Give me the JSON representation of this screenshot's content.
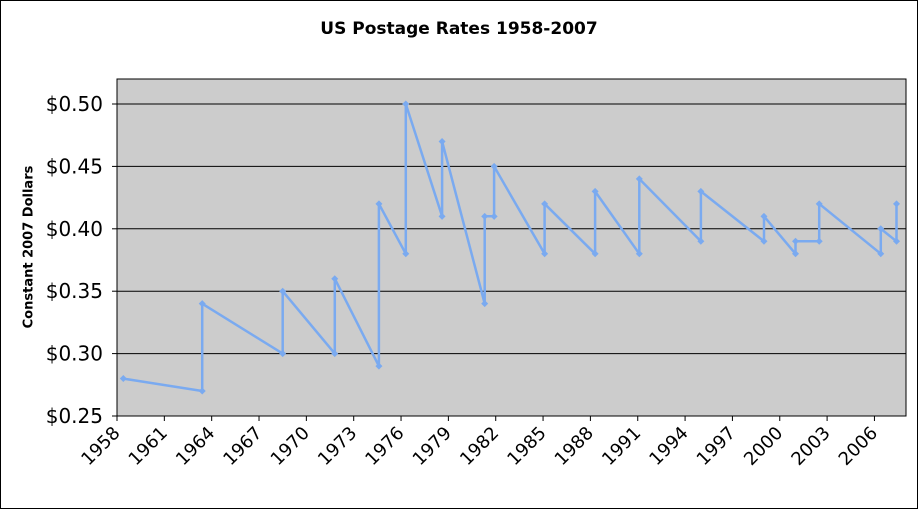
{
  "chart_data": {
    "type": "line",
    "title": "US Postage Rates 1958-2007",
    "xlabel": "",
    "ylabel": "Constant 2007 Dollars",
    "x_ticks": [
      "1958",
      "1961",
      "1964",
      "1967",
      "1970",
      "1973",
      "1976",
      "1979",
      "1982",
      "1985",
      "1988",
      "1991",
      "1994",
      "1997",
      "2000",
      "2003",
      "2006"
    ],
    "y_ticks": [
      "$0.25",
      "$0.30",
      "$0.35",
      "$0.40",
      "$0.45",
      "$0.50"
    ],
    "xlim": [
      1958,
      2008
    ],
    "ylim": [
      0.25,
      0.5
    ],
    "grid": "horizontal",
    "series": [
      {
        "color": "#7aaaf0",
        "points": [
          [
            1958.4,
            0.28
          ],
          [
            1963.4,
            0.27
          ],
          [
            1963.4,
            0.34
          ],
          [
            1968.5,
            0.3
          ],
          [
            1968.5,
            0.35
          ],
          [
            1971.8,
            0.3
          ],
          [
            1971.8,
            0.36
          ],
          [
            1974.6,
            0.29
          ],
          [
            1974.6,
            0.42
          ],
          [
            1976.3,
            0.38
          ],
          [
            1976.3,
            0.5
          ],
          [
            1978.6,
            0.41
          ],
          [
            1978.6,
            0.47
          ],
          [
            1981.3,
            0.34
          ],
          [
            1981.3,
            0.41
          ],
          [
            1981.9,
            0.41
          ],
          [
            1981.9,
            0.45
          ],
          [
            1985.1,
            0.38
          ],
          [
            1985.1,
            0.42
          ],
          [
            1988.3,
            0.38
          ],
          [
            1988.3,
            0.43
          ],
          [
            1991.1,
            0.38
          ],
          [
            1991.1,
            0.44
          ],
          [
            1995.0,
            0.39
          ],
          [
            1995.0,
            0.43
          ],
          [
            1999.0,
            0.39
          ],
          [
            1999.0,
            0.41
          ],
          [
            2001.0,
            0.38
          ],
          [
            2001.0,
            0.39
          ],
          [
            2002.5,
            0.39
          ],
          [
            2002.5,
            0.42
          ],
          [
            2006.4,
            0.38
          ],
          [
            2006.4,
            0.4
          ],
          [
            2007.4,
            0.39
          ],
          [
            2007.4,
            0.42
          ]
        ]
      }
    ]
  }
}
